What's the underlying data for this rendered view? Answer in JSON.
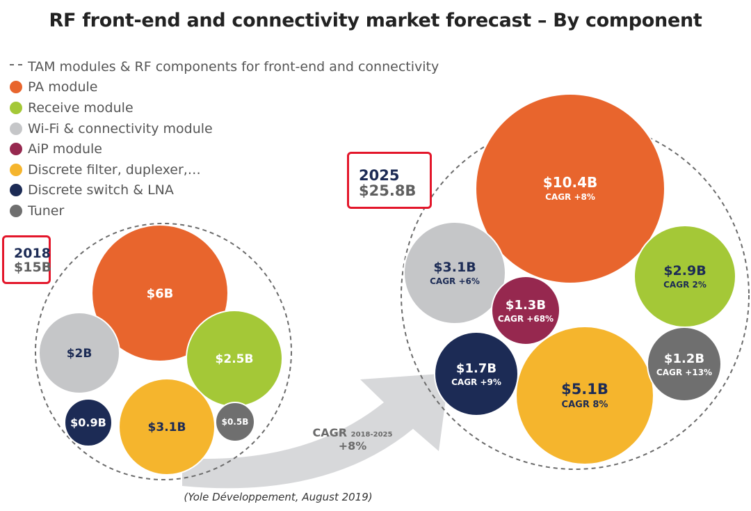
{
  "chart_data": {
    "type": "bubble",
    "title": "RF front-end and connectivity market forecast – By component",
    "source": "(Yole Développement, August 2019)",
    "legend": {
      "total_label": "TAM modules & RF components for front-end and connectivity",
      "entries": [
        {
          "key": "pa",
          "label": "PA module",
          "color": "#e8652d"
        },
        {
          "key": "receive",
          "label": "Receive module",
          "color": "#a4c837"
        },
        {
          "key": "wifi",
          "label": "Wi-Fi & connectivity module",
          "color": "#c5c6c8"
        },
        {
          "key": "aip",
          "label": "AiP module",
          "color": "#96284f"
        },
        {
          "key": "filter",
          "label": "Discrete filter, duplexer,…",
          "color": "#f5b52d"
        },
        {
          "key": "switch",
          "label": "Discrete switch & LNA",
          "color": "#1c2b55"
        },
        {
          "key": "tuner",
          "label": "Tuner",
          "color": "#6f6f6f"
        }
      ]
    },
    "years": [
      {
        "year": "2018",
        "total": 15,
        "total_label": "$15B",
        "components": [
          {
            "key": "pa",
            "value": 6,
            "label": "$6B"
          },
          {
            "key": "wifi",
            "value": 2,
            "label": "$2B"
          },
          {
            "key": "receive",
            "value": 2.5,
            "label": "$2.5B"
          },
          {
            "key": "switch",
            "value": 0.9,
            "label": "$0.9B"
          },
          {
            "key": "filter",
            "value": 3.1,
            "label": "$3.1B"
          },
          {
            "key": "tuner",
            "value": 0.5,
            "label": "$0.5B"
          }
        ]
      },
      {
        "year": "2025",
        "total": 25.8,
        "total_label": "$25.8B",
        "components": [
          {
            "key": "pa",
            "value": 10.4,
            "label": "$10.4B",
            "cagr": "CAGR +8%"
          },
          {
            "key": "wifi",
            "value": 3.1,
            "label": "$3.1B",
            "cagr": "CAGR +6%"
          },
          {
            "key": "receive",
            "value": 2.9,
            "label": "$2.9B",
            "cagr": "CAGR 2%"
          },
          {
            "key": "aip",
            "value": 1.3,
            "label": "$1.3B",
            "cagr": "CAGR +68%"
          },
          {
            "key": "switch",
            "value": 1.7,
            "label": "$1.7B",
            "cagr": "CAGR +9%"
          },
          {
            "key": "filter",
            "value": 5.1,
            "label": "$5.1B",
            "cagr": "CAGR 8%"
          },
          {
            "key": "tuner",
            "value": 1.2,
            "label": "$1.2B",
            "cagr": "CAGR +13%"
          }
        ]
      }
    ],
    "overall_cagr": {
      "label": "CAGR",
      "period": "2018-2025",
      "value": "+8%"
    }
  }
}
